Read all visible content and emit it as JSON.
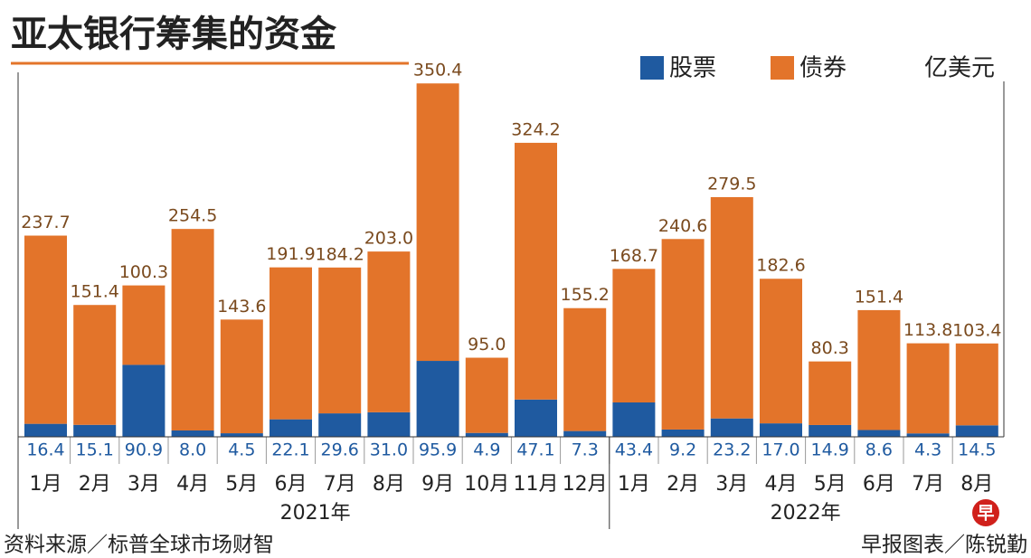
{
  "chart_data": {
    "type": "stacked-bar",
    "title": "亚太银行筹集的资金",
    "unit": "亿美元",
    "category_groups": [
      {
        "label": "2021年",
        "categories": [
          "1月",
          "2月",
          "3月",
          "4月",
          "5月",
          "6月",
          "7月",
          "8月",
          "9月",
          "10月",
          "11月",
          "12月"
        ]
      },
      {
        "label": "2022年",
        "categories": [
          "1月",
          "2月",
          "3月",
          "4月",
          "5月",
          "6月",
          "7月",
          "8月"
        ]
      }
    ],
    "series": [
      {
        "name": "股票",
        "color": "#1f5aa0",
        "values": [
          16.4,
          15.1,
          90.9,
          8.0,
          4.5,
          22.1,
          29.6,
          31.0,
          95.9,
          4.9,
          47.1,
          7.3,
          43.4,
          9.2,
          23.2,
          17.0,
          14.9,
          8.6,
          4.3,
          14.5
        ],
        "value_labels": [
          "16.4",
          "15.1",
          "90.9",
          "8.0",
          "4.5",
          "22.1",
          "29.6",
          "31.0",
          "95.9",
          "4.9",
          "47.1",
          "7.3",
          "43.4",
          "9.2",
          "23.2",
          "17.0",
          "14.9",
          "8.6",
          "4.3",
          "14.5"
        ]
      },
      {
        "name": "债券",
        "color": "#e3742a",
        "values": [
          237.7,
          151.4,
          100.3,
          254.5,
          143.6,
          191.9,
          184.2,
          203.0,
          350.4,
          95.0,
          324.2,
          155.2,
          168.7,
          240.6,
          279.5,
          182.6,
          80.3,
          151.4,
          113.8,
          103.4
        ],
        "value_labels": [
          "237.7",
          "151.4",
          "100.3",
          "254.5",
          "143.6",
          "191.9",
          "184.2",
          "203.0",
          "350.4",
          "95.0",
          "324.2",
          "155.2",
          "168.7",
          "240.6",
          "279.5",
          "182.6",
          "80.3",
          "151.4",
          "113.8",
          "103.4"
        ]
      }
    ],
    "ylim": [
      0,
      450
    ],
    "source": "资料来源／标普全球市场财智",
    "credit": "早报图表／陈锐勤",
    "logo": "早"
  }
}
